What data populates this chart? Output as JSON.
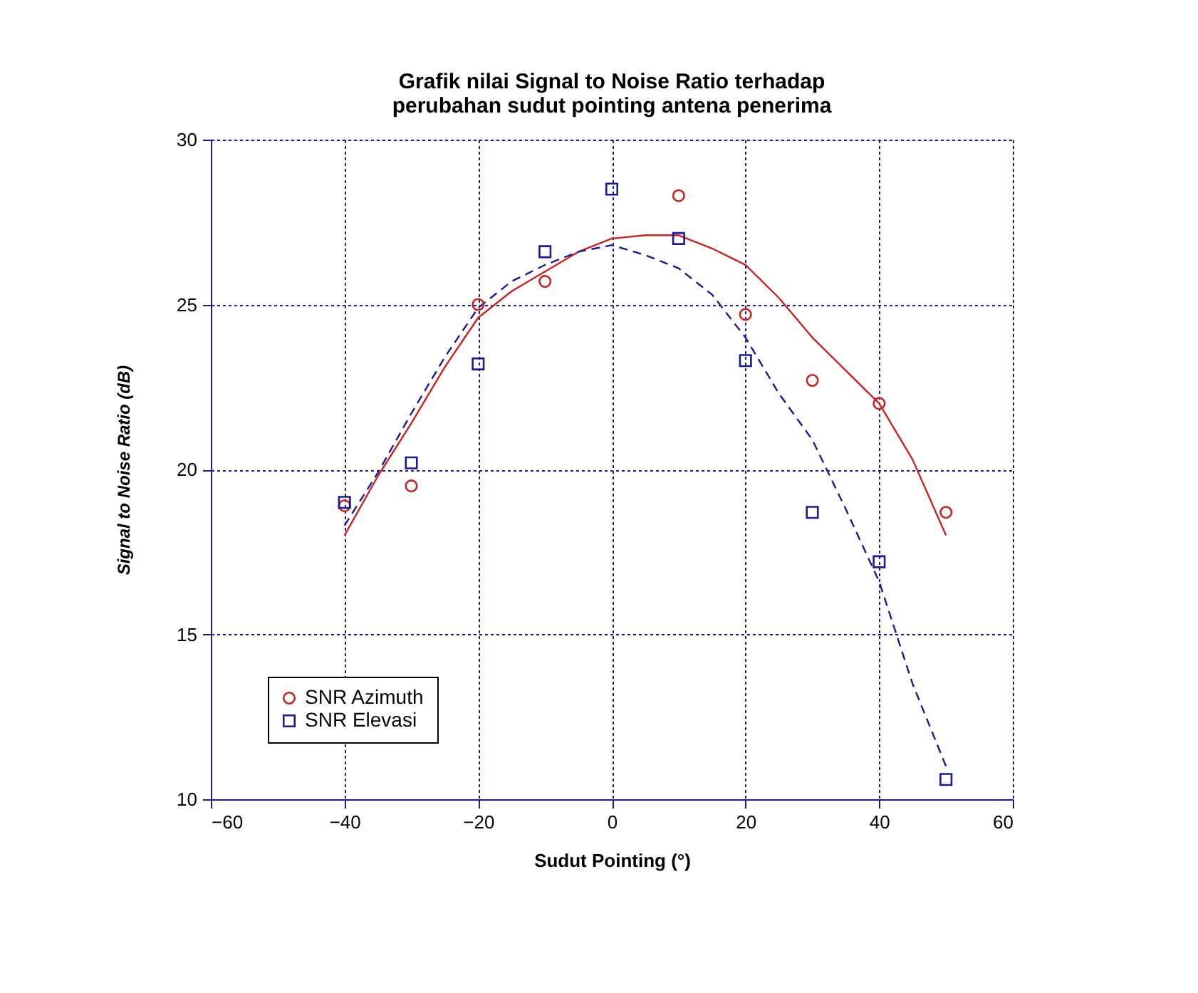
{
  "chart_data": {
    "type": "scatter",
    "title": "Grafik nilai Signal to Noise Ratio terhadap\nperubahan sudut pointing antena penerima",
    "xlabel": "Sudut Pointing (°)",
    "ylabel": "Signal to Noise Ratio (dB)",
    "x": [
      -40,
      -30,
      -20,
      -10,
      0,
      10,
      20,
      30,
      40,
      50
    ],
    "series": [
      {
        "name": "SNR Azimuth",
        "marker": "circle",
        "color": "#cc2222",
        "values": [
          18.9,
          19.5,
          25.0,
          25.7,
          null,
          28.3,
          24.7,
          22.7,
          22.0,
          18.7
        ]
      },
      {
        "name": "SNR Elevasi",
        "marker": "square",
        "color": "#1a1a99",
        "values": [
          19.0,
          20.2,
          23.2,
          26.6,
          28.5,
          27.0,
          23.3,
          18.7,
          17.2,
          10.6
        ]
      },
      {
        "type": "line",
        "marker": "none",
        "line_style": "solid",
        "color": "#cc2222",
        "x": [
          -40,
          -35,
          -30,
          -25,
          -20,
          -15,
          -10,
          -5,
          0,
          5,
          10,
          15,
          20,
          25,
          30,
          35,
          40,
          45,
          50
        ],
        "values": [
          18.0,
          19.8,
          21.4,
          23.1,
          24.6,
          25.4,
          26.0,
          26.6,
          27.0,
          27.1,
          27.1,
          26.7,
          26.2,
          25.2,
          24.0,
          23.0,
          22.0,
          20.3,
          18.0
        ]
      },
      {
        "type": "line",
        "marker": "none",
        "line_style": "dashed",
        "color": "#1a1a99",
        "x": [
          -40,
          -35,
          -30,
          -25,
          -20,
          -15,
          -10,
          -5,
          0,
          5,
          10,
          15,
          20,
          25,
          30,
          35,
          40,
          45,
          50
        ],
        "values": [
          18.3,
          19.9,
          21.7,
          23.4,
          24.9,
          25.7,
          26.2,
          26.6,
          26.8,
          26.5,
          26.1,
          25.3,
          24.0,
          22.3,
          20.9,
          18.8,
          16.6,
          13.5,
          11.0
        ]
      }
    ],
    "xlim": [
      -60,
      60
    ],
    "xticks": [
      -60,
      -40,
      -20,
      0,
      20,
      40,
      60
    ],
    "ylim": [
      10,
      30
    ],
    "yticks": [
      10,
      15,
      20,
      25,
      30
    ],
    "grid": true,
    "legend": "bottom left"
  }
}
